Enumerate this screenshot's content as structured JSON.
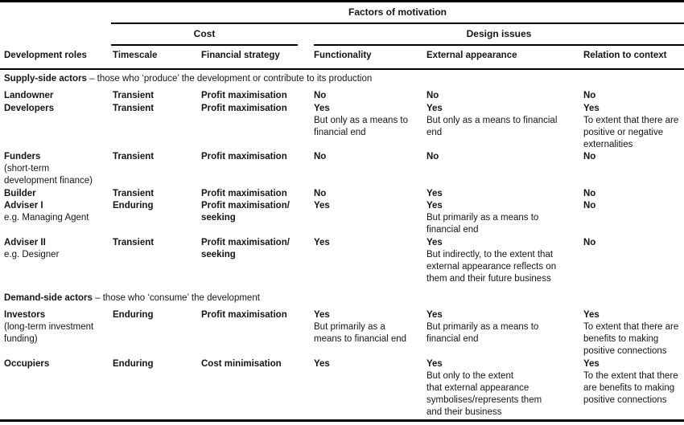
{
  "table": {
    "title": "Factors of motivation",
    "groups": {
      "cost": "Cost",
      "design": "Design issues"
    },
    "columns": [
      "Development roles",
      "Timescale",
      "Financial strategy",
      "Functionality",
      "External appearance",
      "Relation to context"
    ],
    "sections": [
      {
        "heading_bold": "Supply-side actors",
        "heading_rest": " – those who ‘produce’ the development or contribute to its production",
        "rows": [
          {
            "cells": [
              {
                "b": [
                  "Landowner"
                ],
                "p": []
              },
              {
                "b": [
                  "Transient"
                ],
                "p": []
              },
              {
                "b": [
                  "Profit maximisation"
                ],
                "p": []
              },
              {
                "b": [
                  "No"
                ],
                "p": []
              },
              {
                "b": [
                  "No"
                ],
                "p": []
              },
              {
                "b": [
                  "No"
                ],
                "p": []
              }
            ]
          },
          {
            "cells": [
              {
                "b": [
                  "Developers"
                ],
                "p": []
              },
              {
                "b": [
                  "Transient"
                ],
                "p": []
              },
              {
                "b": [
                  "Profit maximisation"
                ],
                "p": []
              },
              {
                "b": [
                  "Yes"
                ],
                "p": [
                  "But only as a means to",
                  "financial end"
                ]
              },
              {
                "b": [
                  "Yes"
                ],
                "p": [
                  "But only as a means to financial",
                  "end"
                ]
              },
              {
                "b": [
                  "Yes"
                ],
                "p": [
                  "To extent that there are",
                  "positive or negative",
                  "externalities"
                ]
              }
            ]
          },
          {
            "cells": [
              {
                "b": [
                  "Funders"
                ],
                "p": [
                  "(short-term",
                  "development finance)"
                ]
              },
              {
                "b": [
                  "Transient"
                ],
                "p": []
              },
              {
                "b": [
                  "Profit maximisation"
                ],
                "p": []
              },
              {
                "b": [
                  "No"
                ],
                "p": []
              },
              {
                "b": [
                  "No"
                ],
                "p": []
              },
              {
                "b": [
                  "No"
                ],
                "p": []
              }
            ]
          },
          {
            "cells": [
              {
                "b": [
                  "Builder"
                ],
                "p": []
              },
              {
                "b": [
                  "Transient"
                ],
                "p": []
              },
              {
                "b": [
                  "Profit maximisation"
                ],
                "p": []
              },
              {
                "b": [
                  "No"
                ],
                "p": []
              },
              {
                "b": [
                  "Yes"
                ],
                "p": []
              },
              {
                "b": [
                  "No"
                ],
                "p": []
              }
            ]
          },
          {
            "cells": [
              {
                "b": [
                  "Adviser I"
                ],
                "p": [
                  "e.g. Managing Agent"
                ]
              },
              {
                "b": [
                  "Enduring"
                ],
                "p": []
              },
              {
                "b": [
                  "Profit maximisation/",
                  "seeking"
                ],
                "p": []
              },
              {
                "b": [
                  "Yes"
                ],
                "p": []
              },
              {
                "b": [
                  "Yes"
                ],
                "p": [
                  "But primarily as a means to",
                  "financial end"
                ]
              },
              {
                "b": [
                  "No"
                ],
                "p": []
              }
            ]
          },
          {
            "cells": [
              {
                "b": [
                  "Adviser II"
                ],
                "p": [
                  "e.g. Designer"
                ]
              },
              {
                "b": [
                  "Transient"
                ],
                "p": []
              },
              {
                "b": [
                  "Profit maximisation/",
                  "seeking"
                ],
                "p": []
              },
              {
                "b": [
                  "Yes"
                ],
                "p": []
              },
              {
                "b": [
                  "Yes"
                ],
                "p": [
                  "But indirectly, to the extent that",
                  "external appearance reflects on",
                  "them and their future business"
                ]
              },
              {
                "b": [
                  "No"
                ],
                "p": []
              }
            ]
          }
        ]
      },
      {
        "heading_bold": "Demand-side actors",
        "heading_rest": " – those who ‘consume’ the development",
        "rows": [
          {
            "cells": [
              {
                "b": [
                  "Investors"
                ],
                "p": [
                  "(long-term investment",
                  "funding)"
                ]
              },
              {
                "b": [
                  "Enduring"
                ],
                "p": []
              },
              {
                "b": [
                  "Profit maximisation"
                ],
                "p": []
              },
              {
                "b": [
                  "Yes"
                ],
                "p": [
                  "But primarily as a",
                  "means to financial end"
                ]
              },
              {
                "b": [
                  "Yes"
                ],
                "p": [
                  "But primarily as a means to",
                  "financial end"
                ]
              },
              {
                "b": [
                  "Yes"
                ],
                "p": [
                  "To extent that there are",
                  "benefits to making",
                  "positive connections"
                ]
              }
            ]
          },
          {
            "cells": [
              {
                "b": [
                  "Occupiers"
                ],
                "p": []
              },
              {
                "b": [
                  "Enduring"
                ],
                "p": []
              },
              {
                "b": [
                  "Cost minimisation"
                ],
                "p": []
              },
              {
                "b": [
                  "Yes"
                ],
                "p": []
              },
              {
                "b": [
                  "Yes"
                ],
                "p": [
                  "But only to the extent",
                  "that external appearance",
                  "symbolises/represents them",
                  "and their business"
                ]
              },
              {
                "b": [
                  "Yes"
                ],
                "p": [
                  "To the extent that there",
                  "are benefits to making",
                  "positive connections"
                ]
              }
            ]
          }
        ]
      }
    ]
  }
}
